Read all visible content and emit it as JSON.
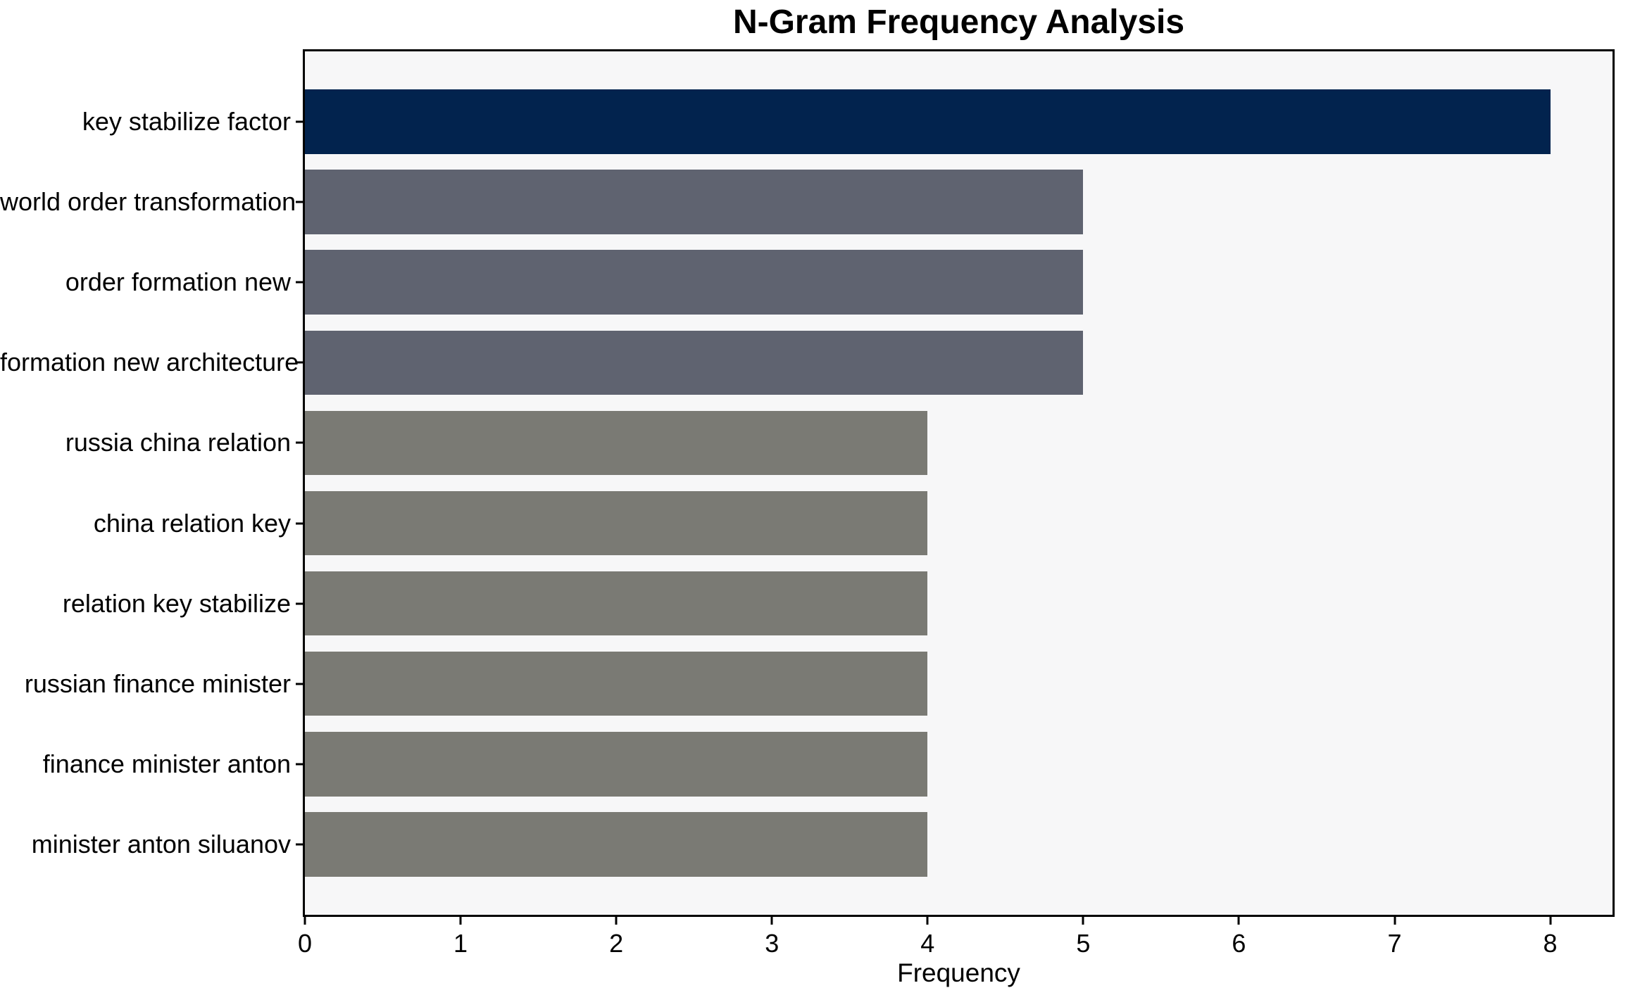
{
  "chart_data": {
    "type": "bar",
    "orientation": "horizontal",
    "title": "N-Gram Frequency Analysis",
    "xlabel": "Frequency",
    "ylabel": "",
    "categories": [
      "key stabilize factor",
      "world order transformation",
      "order formation new",
      "formation new architecture",
      "russia china relation",
      "china relation key",
      "relation key stabilize",
      "russian finance minister",
      "finance minister anton",
      "minister anton siluanov"
    ],
    "values": [
      8,
      5,
      5,
      5,
      4,
      4,
      4,
      4,
      4,
      4
    ],
    "bar_colors": [
      "#02234e",
      "#5f6370",
      "#5f6370",
      "#5f6370",
      "#7a7a74",
      "#7a7a74",
      "#7a7a74",
      "#7a7a74",
      "#7a7a74",
      "#7a7a74"
    ],
    "xticks": [
      0,
      1,
      2,
      3,
      4,
      5,
      6,
      7,
      8
    ],
    "xlim": [
      0,
      8.4
    ],
    "grid": false,
    "legend": "none",
    "plot_background": "#f7f7f8",
    "page_background": "#ffffff",
    "spine_color": "#000000",
    "bar_height_fraction": 0.8
  }
}
